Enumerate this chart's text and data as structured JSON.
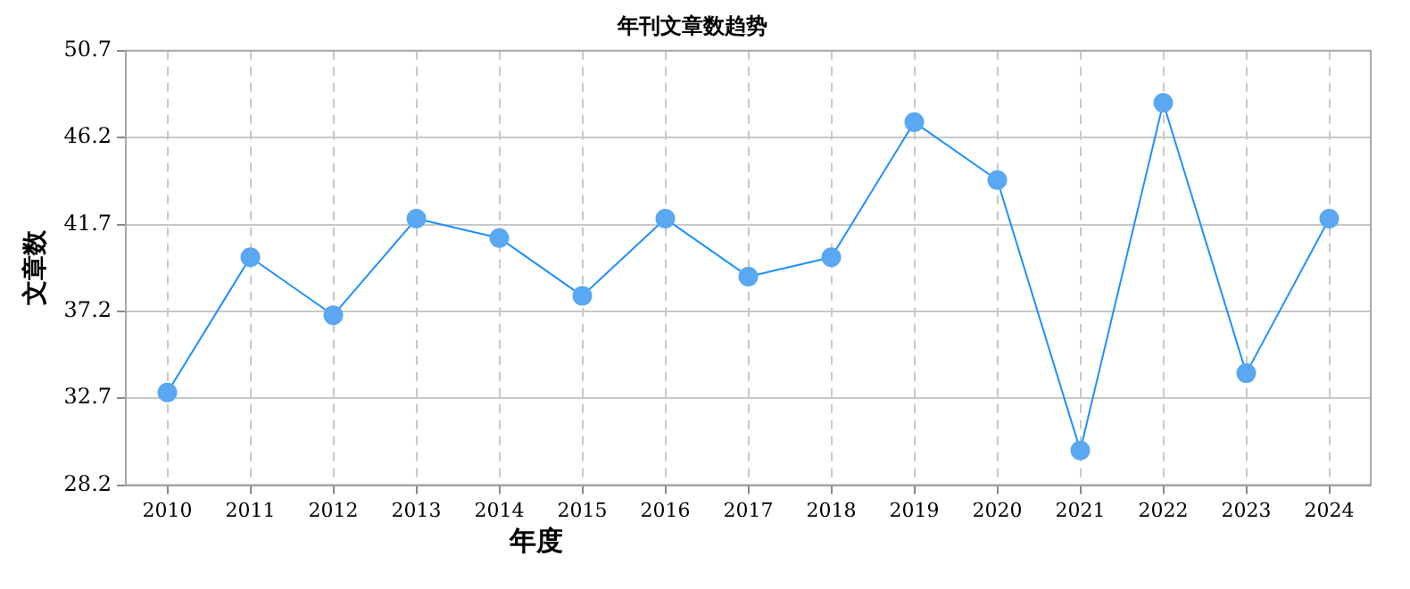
{
  "chart_data": {
    "type": "line",
    "title": "年刊文章数趋势",
    "xlabel": "年度",
    "ylabel": "文章数",
    "categories": [
      "2010",
      "2011",
      "2012",
      "2013",
      "2014",
      "2015",
      "2016",
      "2017",
      "2018",
      "2019",
      "2020",
      "2021",
      "2022",
      "2023",
      "2024"
    ],
    "series": [
      {
        "color": "#1e90ff",
        "values": [
          33,
          40,
          37,
          42,
          41,
          38,
          42,
          39,
          40,
          47,
          44,
          30,
          48,
          34,
          42
        ]
      }
    ],
    "ylim": [
      28.2,
      50.7
    ],
    "yticks": [
      28.2,
      32.7,
      37.2,
      41.7,
      46.2,
      50.7
    ],
    "grid": true,
    "marker": "circle",
    "line_style": "solid",
    "legend": false
  }
}
